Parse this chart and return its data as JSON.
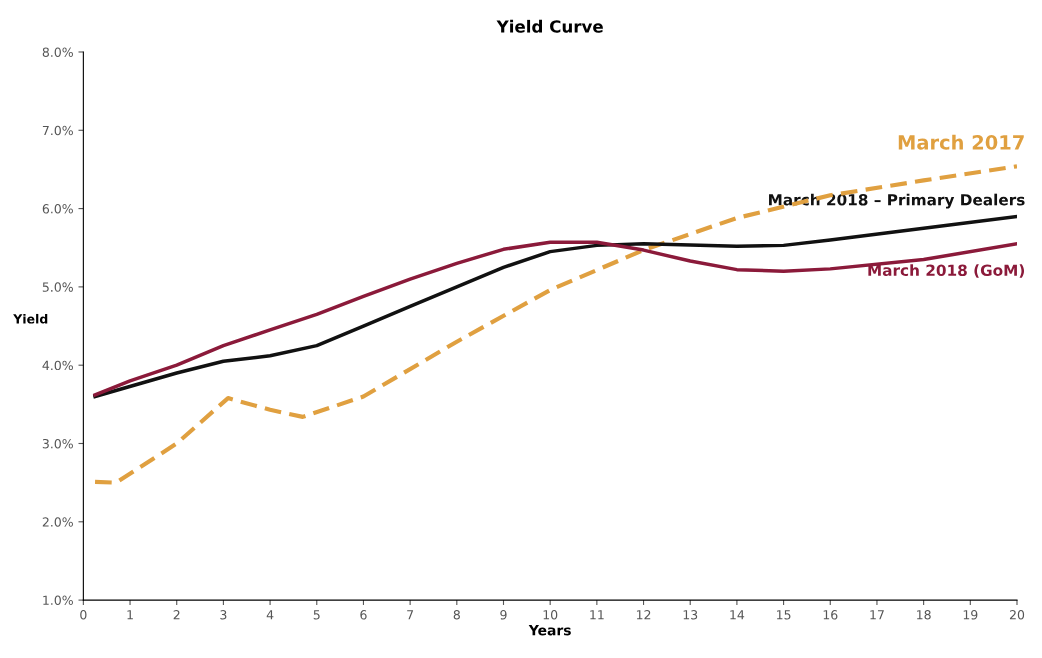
{
  "chart_data": {
    "type": "line",
    "title": "Yield Curve",
    "xlabel": "Years",
    "ylabel": "Yield",
    "xlim": [
      0,
      20
    ],
    "xticks": [
      0,
      1,
      2,
      3,
      4,
      5,
      6,
      7,
      8,
      9,
      10,
      11,
      12,
      13,
      14,
      15,
      16,
      17,
      18,
      19,
      20
    ],
    "ylim": [
      1.0,
      8.0
    ],
    "yticks": [
      {
        "value": 1.0,
        "label": "1.0%"
      },
      {
        "value": 2.0,
        "label": "2.0%"
      },
      {
        "value": 3.0,
        "label": "3.0%"
      },
      {
        "value": 4.0,
        "label": "4.0%"
      },
      {
        "value": 5.0,
        "label": "5.0%"
      },
      {
        "value": 6.0,
        "label": "6.0%"
      },
      {
        "value": 7.0,
        "label": "7.0%"
      },
      {
        "value": 8.0,
        "label": "8.0%"
      }
    ],
    "grid": false,
    "legend": false,
    "marker": "none",
    "series": [
      {
        "name": "March 2017",
        "color": "#e0a040",
        "line_style": "dashed",
        "x": [
          0.25,
          0.7,
          2,
          3.1,
          4,
          4.7,
          6,
          8,
          10,
          12,
          14,
          16,
          18,
          20
        ],
        "values": [
          2.51,
          2.5,
          3.0,
          3.58,
          3.43,
          3.34,
          3.6,
          4.3,
          4.96,
          5.47,
          5.88,
          6.17,
          6.36,
          6.54
        ]
      },
      {
        "name": "March 2018 – Primary Dealers",
        "color": "#111111",
        "line_style": "solid",
        "x": [
          0.25,
          2,
          3,
          4,
          5,
          6,
          7,
          8,
          9,
          10,
          11,
          12,
          14,
          15,
          16,
          18,
          20
        ],
        "values": [
          3.6,
          3.9,
          4.05,
          4.12,
          4.25,
          4.5,
          4.75,
          5.0,
          5.25,
          5.45,
          5.53,
          5.55,
          5.52,
          5.53,
          5.6,
          5.75,
          5.9
        ]
      },
      {
        "name": "March 2018 (GoM)",
        "color": "#8b1a3a",
        "line_style": "solid",
        "x": [
          0.25,
          1,
          2,
          3,
          4,
          5,
          6,
          7,
          8,
          9,
          10,
          11,
          12,
          13,
          14,
          15,
          16,
          18,
          20
        ],
        "values": [
          3.62,
          3.8,
          4.0,
          4.25,
          4.45,
          4.65,
          4.88,
          5.1,
          5.3,
          5.48,
          5.57,
          5.57,
          5.47,
          5.33,
          5.22,
          5.2,
          5.23,
          5.35,
          5.55
        ]
      }
    ]
  }
}
